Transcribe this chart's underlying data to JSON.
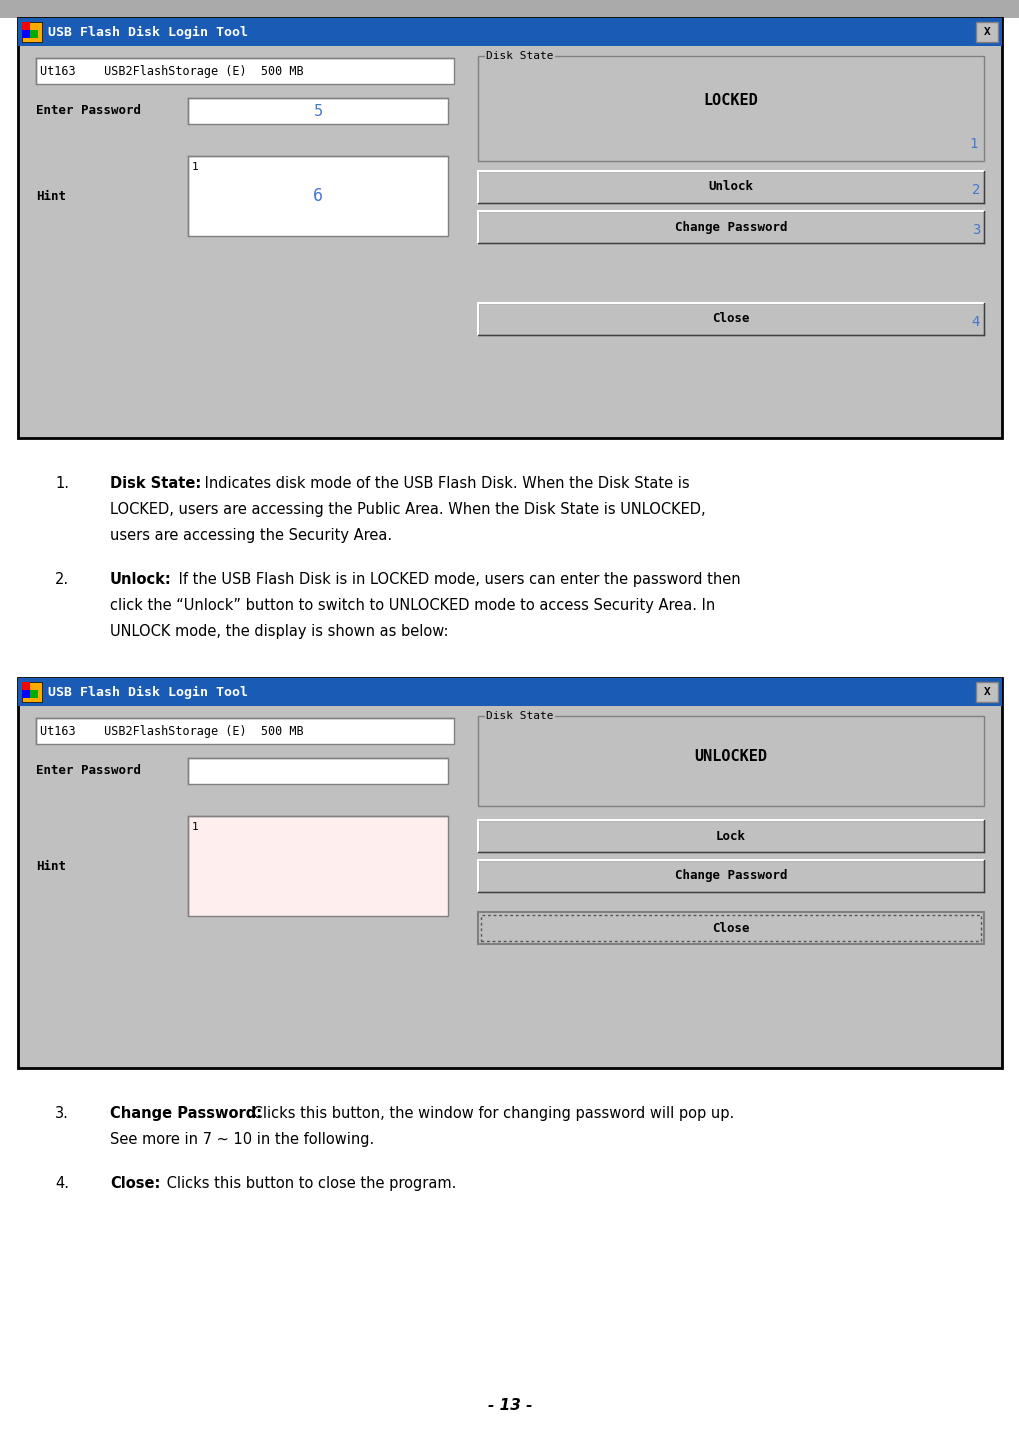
{
  "page_bg": "#ffffff",
  "page_width": 10.2,
  "page_height": 14.37,
  "dpi": 100,
  "titlebar_color": "#1a5bb5",
  "titlebar_text": "USB Flash Disk Login Tool",
  "titlebar_text_color": "#ffffff",
  "dialog_bg": "#c0c0c0",
  "input_bg": "#ffffff",
  "blue_number_color": "#4477cc",
  "hint_box2_color": "#ffcccc",
  "top_bar_color": "#999999",
  "storage_text": "Ut163    USB2FlashStorage (E)  500 MB",
  "item1_bold": "Disk State:",
  "item1_line1": " Indicates disk mode of the USB Flash Disk. When the Disk State is",
  "item1_line2": "LOCKED, users are accessing the Public Area. When the Disk State is UNLOCKED,",
  "item1_line3": "users are accessing the Security Area.",
  "item2_bold": "Unlock:",
  "item2_line1": " If the USB Flash Disk is in LOCKED mode, users can enter the password then",
  "item2_line2": "click the “Unlock” button to switch to UNLOCKED mode to access Security Area. In",
  "item2_line3": "UNLOCK mode, the display is shown as below:",
  "item3_bold": "Change Password:",
  "item3_line1": " Clicks this button, the window for changing password will pop up.",
  "item3_line2": "See more in 7 ~ 10 in the following.",
  "item4_bold": "Close:",
  "item4_line1": " Clicks this button to close the program.",
  "page_number": "- 13 -"
}
